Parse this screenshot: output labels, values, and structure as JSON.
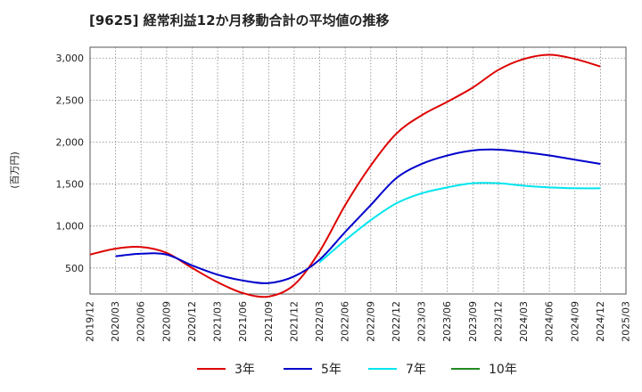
{
  "chart_data": {
    "type": "line",
    "title": "[9625]  経常利益12か月移動合計の平均値の推移",
    "ylabel": "(百万円)",
    "xlabel": "",
    "x_ticks": [
      "2019/12",
      "2020/03",
      "2020/06",
      "2020/09",
      "2020/12",
      "2021/03",
      "2021/06",
      "2021/09",
      "2021/12",
      "2022/03",
      "2022/06",
      "2022/09",
      "2022/12",
      "2023/03",
      "2023/06",
      "2023/09",
      "2023/12",
      "2024/03",
      "2024/06",
      "2024/09",
      "2024/12",
      "2025/03"
    ],
    "y_ticks": [
      500,
      1000,
      1500,
      2000,
      2500,
      3000
    ],
    "y_tick_labels": [
      "500",
      "1,000",
      "1,500",
      "2,000",
      "2,500",
      "3,000"
    ],
    "ylim": [
      190,
      3130
    ],
    "grid": true,
    "legend_position": "bottom",
    "x": [
      "2019/12",
      "2020/03",
      "2020/06",
      "2020/09",
      "2020/12",
      "2021/03",
      "2021/06",
      "2021/09",
      "2021/12",
      "2022/03",
      "2022/06",
      "2022/09",
      "2022/12",
      "2023/03",
      "2023/06",
      "2023/09",
      "2023/12",
      "2024/03",
      "2024/06",
      "2024/09",
      "2024/12"
    ],
    "series": [
      {
        "name": "3年",
        "color": "#dd0000",
        "values": [
          660,
          730,
          750,
          680,
          500,
          330,
          200,
          160,
          300,
          700,
          1250,
          1720,
          2100,
          2320,
          2480,
          2650,
          2860,
          2990,
          3040,
          2990,
          2900
        ]
      },
      {
        "name": "5年",
        "color": "#0000cc",
        "values": [
          null,
          640,
          670,
          660,
          530,
          420,
          350,
          320,
          400,
          600,
          930,
          1250,
          1570,
          1740,
          1840,
          1900,
          1910,
          1880,
          1840,
          1790,
          1740
        ]
      },
      {
        "name": "7年",
        "color": "#00e5ee",
        "values": [
          null,
          null,
          null,
          null,
          null,
          null,
          null,
          null,
          null,
          570,
          830,
          1070,
          1270,
          1390,
          1460,
          1510,
          1510,
          1480,
          1460,
          1450,
          1450
        ]
      },
      {
        "name": "10年",
        "color": "#228b22",
        "values": [
          null,
          null,
          null,
          null,
          null,
          null,
          null,
          null,
          null,
          null,
          null,
          null,
          null,
          null,
          null,
          null,
          null,
          null,
          null,
          null,
          null
        ]
      }
    ]
  }
}
